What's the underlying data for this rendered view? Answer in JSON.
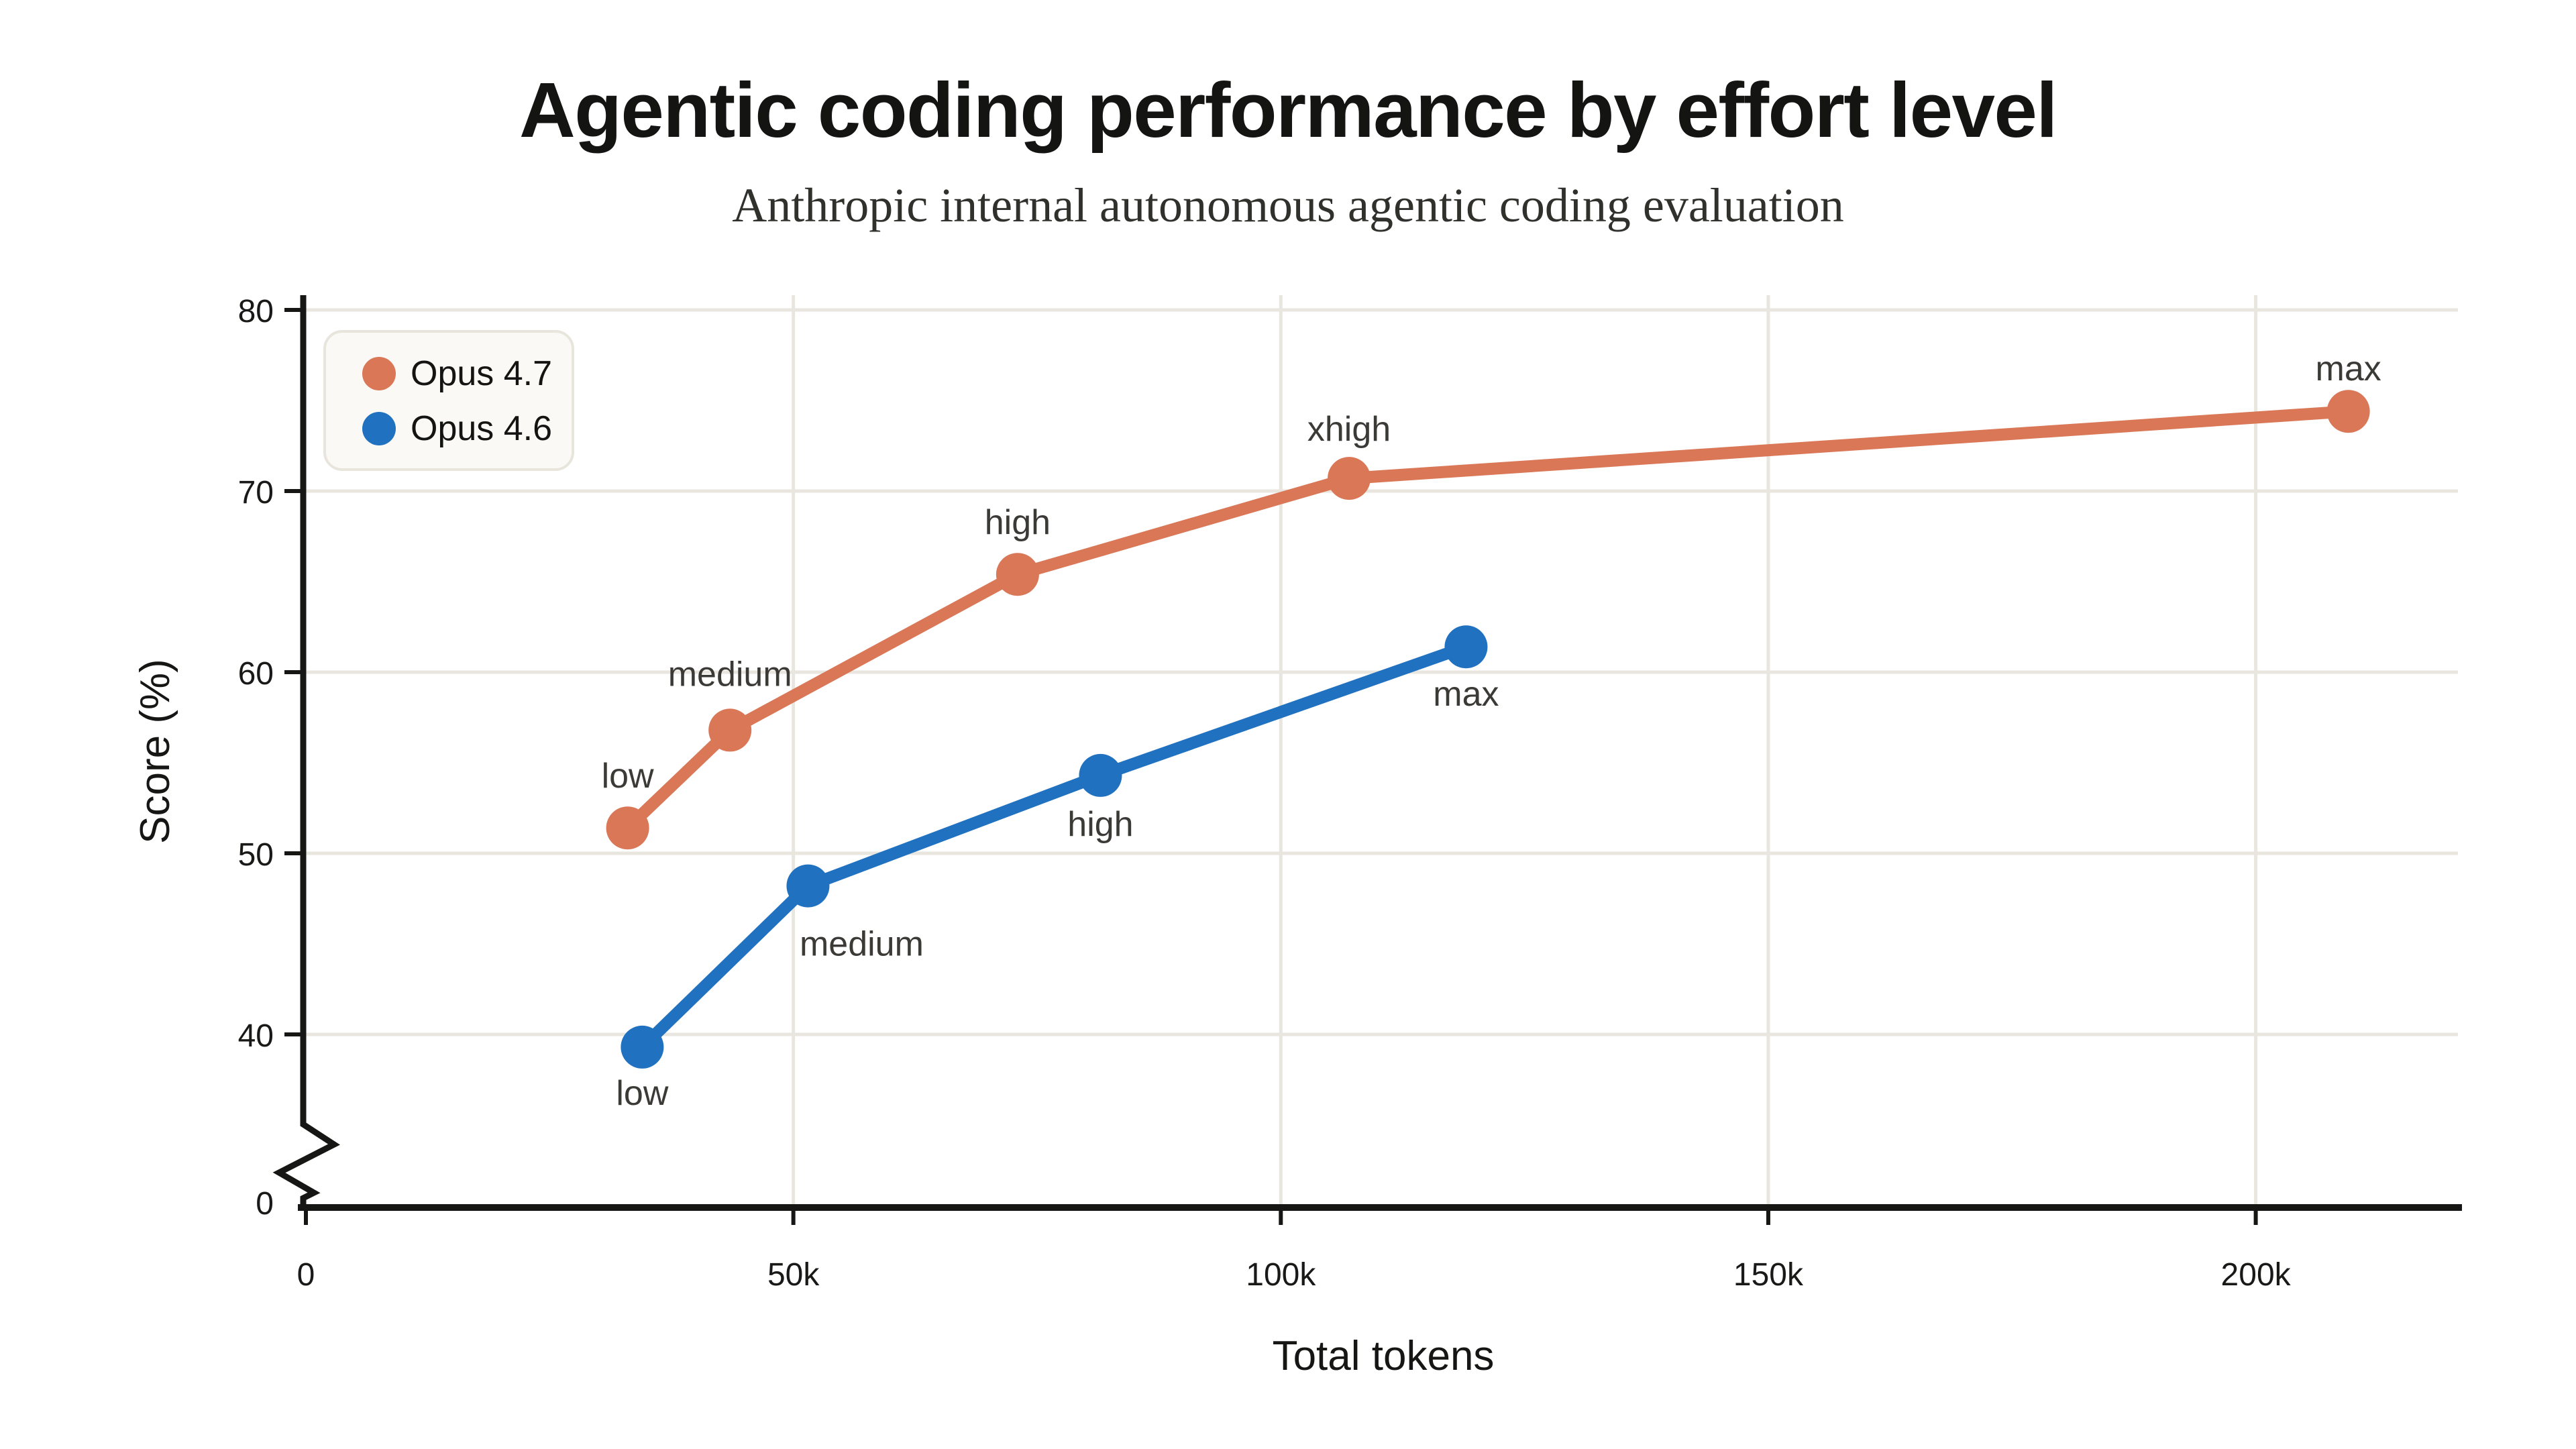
{
  "header": {
    "title": "Agentic coding performance by effort level",
    "subtitle": "Anthropic internal autonomous agentic coding evaluation"
  },
  "legend": {
    "position": "top-left",
    "items": [
      {
        "label": "Opus 4.7",
        "color": "#d97757"
      },
      {
        "label": "Opus 4.6",
        "color": "#2171c1"
      }
    ]
  },
  "axes": {
    "x_label": "Total tokens",
    "y_label": "Score (%)"
  },
  "colors": {
    "background": "#ffffff",
    "gridline": "#e8e6df",
    "axis": "#161615",
    "tick_text": "#191918",
    "point_label_text": "#3b3a37",
    "legend_bg": "#faf9f5",
    "legend_border": "#e8e5dd"
  },
  "chart_data": {
    "type": "line",
    "title": "Agentic coding performance by effort level",
    "subtitle": "Anthropic internal autonomous agentic coding evaluation",
    "xlabel": "Total tokens",
    "ylabel": "Score (%)",
    "grid": true,
    "legend_position": "top-left",
    "x_axis": {
      "range_tokens": [
        0,
        223000
      ],
      "ticks": [
        {
          "value": 0,
          "label": "0"
        },
        {
          "value": 50000,
          "label": "50k"
        },
        {
          "value": 100000,
          "label": "100k"
        },
        {
          "value": 150000,
          "label": "150k"
        },
        {
          "value": 200000,
          "label": "200k"
        }
      ]
    },
    "y_axis": {
      "range": [
        0,
        80
      ],
      "broken_axis": true,
      "break_between": [
        0,
        40
      ],
      "ticks": [
        {
          "value": 0,
          "label": "0"
        },
        {
          "value": 40,
          "label": "40"
        },
        {
          "value": 50,
          "label": "50"
        },
        {
          "value": 60,
          "label": "60"
        },
        {
          "value": 70,
          "label": "70"
        },
        {
          "value": 80,
          "label": "80"
        }
      ]
    },
    "series": [
      {
        "name": "Opus 4.7",
        "color": "#d97757",
        "points": [
          {
            "label": "low",
            "total_tokens": 33000,
            "score": 51.4,
            "label_offset": [
              0,
              -30
            ]
          },
          {
            "label": "medium",
            "total_tokens": 43500,
            "score": 56.8,
            "label_offset": [
              0,
              -33
            ]
          },
          {
            "label": "high",
            "total_tokens": 73000,
            "score": 65.4,
            "label_offset": [
              0,
              -30
            ]
          },
          {
            "label": "xhigh",
            "total_tokens": 107000,
            "score": 70.7,
            "label_offset": [
              0,
              -28
            ]
          },
          {
            "label": "max",
            "total_tokens": 209500,
            "score": 74.4,
            "label_offset": [
              0,
              -23
            ]
          }
        ]
      },
      {
        "name": "Opus 4.6",
        "color": "#2171c1",
        "points": [
          {
            "label": "low",
            "total_tokens": 34500,
            "score": 39.3,
            "label_offset": [
              0,
              43
            ]
          },
          {
            "label": "medium",
            "total_tokens": 51500,
            "score": 48.2,
            "label_offset": [
              40,
              52
            ]
          },
          {
            "label": "high",
            "total_tokens": 81500,
            "score": 54.3,
            "label_offset": [
              0,
              45
            ]
          },
          {
            "label": "max",
            "total_tokens": 119000,
            "score": 61.4,
            "label_offset": [
              0,
              44
            ]
          }
        ]
      }
    ]
  }
}
